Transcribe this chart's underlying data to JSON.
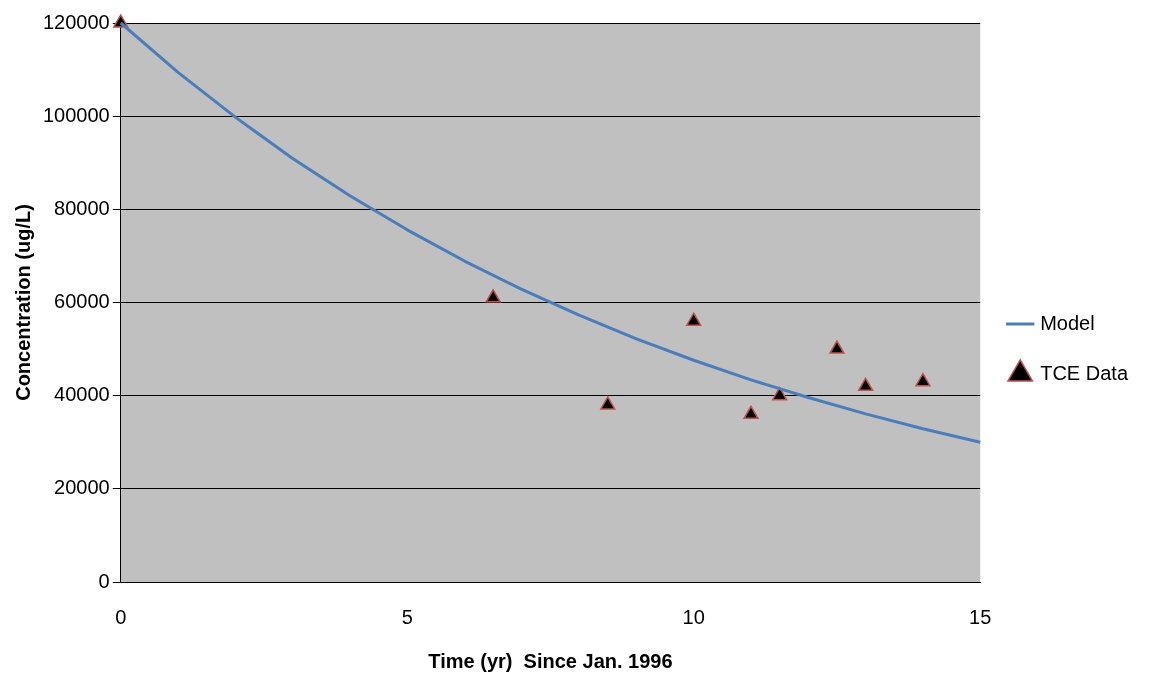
{
  "chart_data": {
    "type": "line",
    "xlabel": "Time (yr)  Since Jan. 1996",
    "ylabel": "Concentration (ug/L)",
    "xlim": [
      0,
      15
    ],
    "xticks": [
      0,
      5,
      10,
      15
    ],
    "ylim": [
      0,
      120000
    ],
    "yticks": [
      0,
      20000,
      40000,
      60000,
      80000,
      100000,
      120000
    ],
    "grid": "y",
    "legend": "right",
    "series": [
      {
        "name": "Model",
        "type": "line",
        "color": "#4a7ebb",
        "marker": "none",
        "line_style": "solid",
        "x": [
          0,
          1,
          2,
          3,
          4,
          5,
          6,
          7,
          8,
          9,
          10,
          11,
          12,
          13,
          14,
          15
        ],
        "values": [
          120000,
          109400,
          99800,
          90900,
          82900,
          75600,
          68900,
          62800,
          57300,
          52200,
          47600,
          43400,
          39600,
          36100,
          32900,
          30000
        ]
      },
      {
        "name": "TCE Data",
        "type": "scatter",
        "color": "#000000",
        "marker": "triangle",
        "x": [
          0,
          6.5,
          8.5,
          10,
          11,
          11.5,
          12.5,
          13,
          14
        ],
        "values": [
          120000,
          61000,
          38000,
          56000,
          36000,
          40000,
          50000,
          42000,
          43000
        ]
      }
    ]
  }
}
